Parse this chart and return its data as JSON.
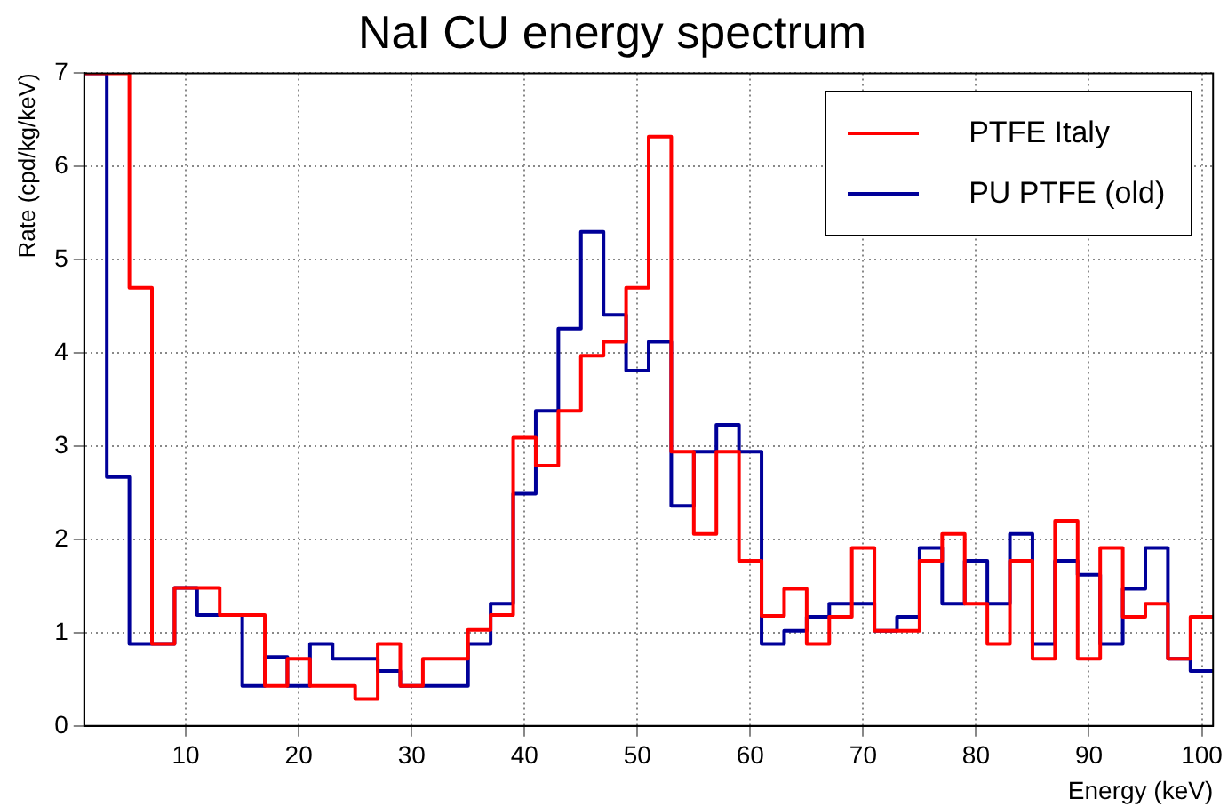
{
  "chart_data": {
    "type": "histogram",
    "title": "NaI CU energy spectrum",
    "xlabel": "Energy (keV)",
    "ylabel": "Rate (cpd/kg/keV)",
    "bins": [
      1,
      3,
      5,
      7,
      9,
      11,
      13,
      15,
      17,
      19,
      21,
      23,
      25,
      27,
      29,
      31,
      33,
      35,
      37,
      39,
      41,
      43,
      45,
      47,
      49,
      51,
      53,
      55,
      57,
      59,
      61,
      63,
      65,
      67,
      69,
      71,
      73,
      75,
      77,
      79,
      81,
      83,
      85,
      87,
      89,
      91,
      93,
      95,
      97,
      99,
      101
    ],
    "series": [
      {
        "name": "PTFE Italy",
        "color": "#ff0000",
        "values": [
          7,
          7,
          4.7,
          0.88,
          1.48,
          1.48,
          1.19,
          1.19,
          0.43,
          0.72,
          0.43,
          0.43,
          0.29,
          0.88,
          0.43,
          0.72,
          0.72,
          1.03,
          1.19,
          3.09,
          2.79,
          3.38,
          3.97,
          4.12,
          4.7,
          6.32,
          2.94,
          2.06,
          2.94,
          1.77,
          1.18,
          1.47,
          0.88,
          1.17,
          1.91,
          1.02,
          1.02,
          1.77,
          2.06,
          1.31,
          0.88,
          1.77,
          0.72,
          2.2,
          0.72,
          1.91,
          1.17,
          1.31,
          0.72,
          1.17
        ]
      },
      {
        "name": "PU PTFE (old)",
        "color": "#000099",
        "values": [
          7,
          2.67,
          0.88,
          0.88,
          1.48,
          1.19,
          1.19,
          0.43,
          0.74,
          0.43,
          0.88,
          0.72,
          0.72,
          0.59,
          0.43,
          0.43,
          0.43,
          0.88,
          1.31,
          2.49,
          3.38,
          4.26,
          5.3,
          4.41,
          3.81,
          4.12,
          2.36,
          2.94,
          3.23,
          2.94,
          0.88,
          1.02,
          1.17,
          1.31,
          1.31,
          1.02,
          1.17,
          1.91,
          1.31,
          1.77,
          1.31,
          2.06,
          0.88,
          1.77,
          1.62,
          0.88,
          1.47,
          1.91,
          0.72,
          0.59
        ]
      }
    ],
    "xlim": [
      1,
      101
    ],
    "xticks": [
      10,
      20,
      30,
      40,
      50,
      60,
      70,
      80,
      90,
      100
    ],
    "ylim": [
      0,
      7
    ],
    "yticks": [
      0,
      1,
      2,
      3,
      4,
      5,
      6,
      7
    ],
    "grid": true,
    "legend": "top right",
    "line_style": "solid"
  }
}
